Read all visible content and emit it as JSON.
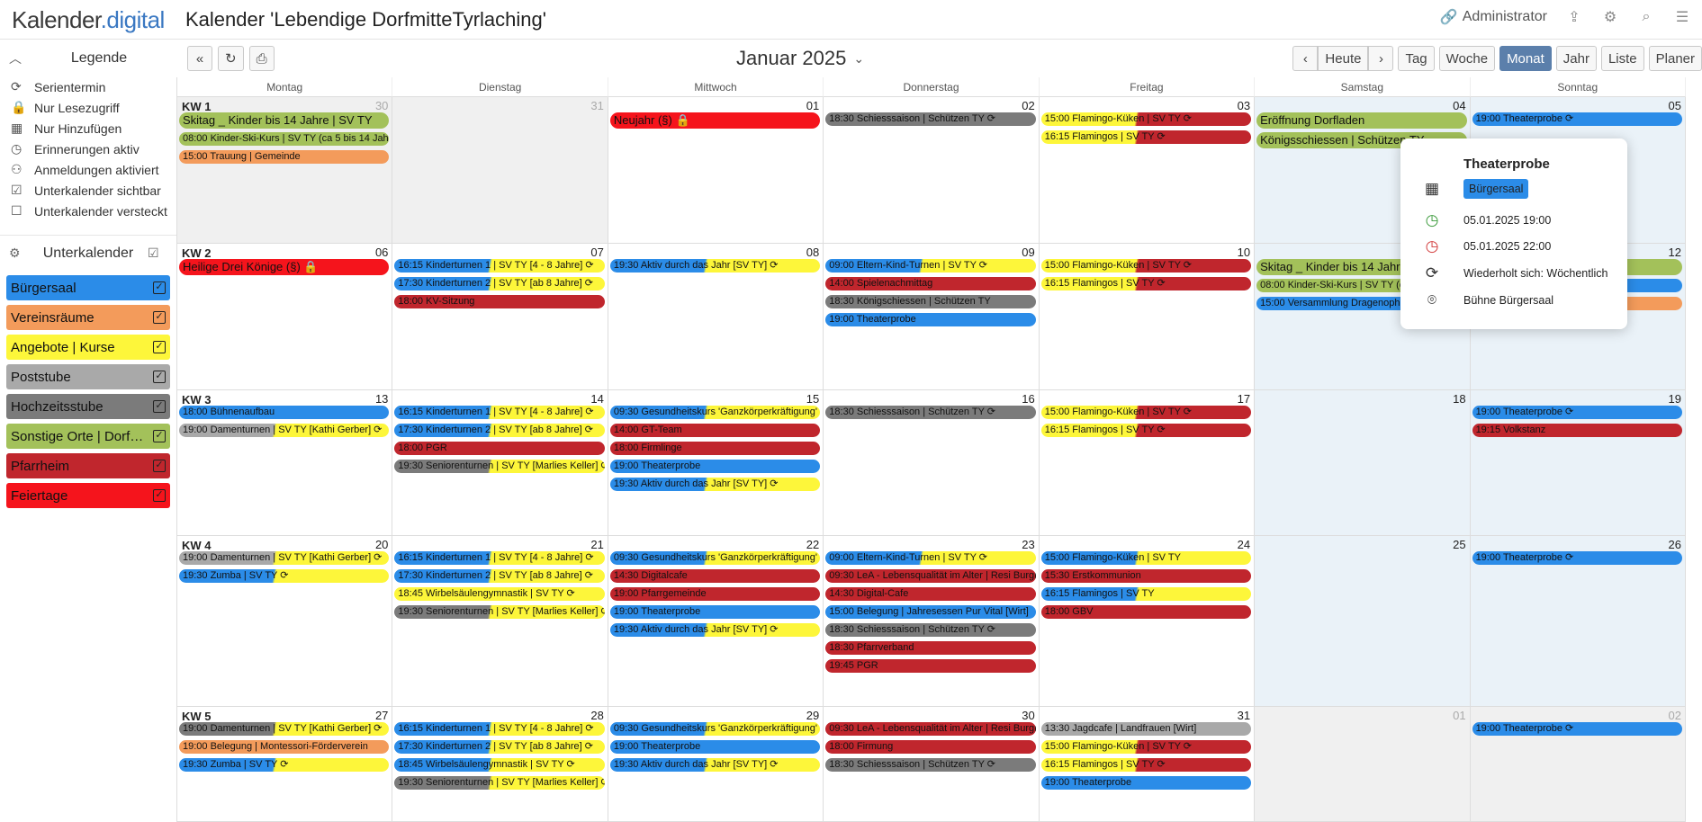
{
  "app": {
    "logo_main": "Kalender",
    "logo_suffix": ".digital",
    "calendar_title": "Kalender 'Lebendige DorfmitteTyrlaching'",
    "user": "Administrator"
  },
  "colors": {
    "blue": "#2b8ce8",
    "orange": "#f39b5b",
    "yellow": "#fdf63a",
    "grey": "#a9a9a9",
    "darkgrey": "#7b7b7b",
    "green": "#a3c15a",
    "darkred": "#c0262d",
    "red": "#f5141c"
  },
  "legend": {
    "title": "Legende",
    "items": [
      {
        "icon": "repeat-icon",
        "label": "Serientermin"
      },
      {
        "icon": "lock-icon",
        "label": "Nur Lesezugriff"
      },
      {
        "icon": "calendar-plus-icon",
        "label": "Nur Hinzufügen"
      },
      {
        "icon": "alarm-icon",
        "label": "Erinnerungen aktiv"
      },
      {
        "icon": "user-plus-icon",
        "label": "Anmeldungen aktiviert"
      },
      {
        "icon": "checkbox-checked-icon",
        "label": "Unterkalender sichtbar"
      },
      {
        "icon": "checkbox-empty-icon",
        "label": "Unterkalender versteckt"
      }
    ]
  },
  "subcalendars": {
    "title": "Unterkalender",
    "items": [
      {
        "label": "Bürgersaal",
        "color": "#2b8ce8"
      },
      {
        "label": "Vereinsräume",
        "color": "#f39b5b"
      },
      {
        "label": "Angebote | Kurse",
        "color": "#fdf63a"
      },
      {
        "label": "Poststube",
        "color": "#a9a9a9"
      },
      {
        "label": "Hochzeitsstube",
        "color": "#7b7b7b"
      },
      {
        "label": "Sonstige Orte | Dorfmitte",
        "color": "#a3c15a"
      },
      {
        "label": "Pfarrheim",
        "color": "#c0262d"
      },
      {
        "label": "Feiertage",
        "color": "#f5141c"
      }
    ]
  },
  "toolbar": {
    "month": "Januar 2025",
    "today": "Heute",
    "views": [
      "Tag",
      "Woche",
      "Monat",
      "Jahr",
      "Liste",
      "Planer"
    ],
    "active_view": "Monat"
  },
  "weekdays": [
    "Montag",
    "Dienstag",
    "Mittwoch",
    "Donnerstag",
    "Freitag",
    "Samstag",
    "Sonntag"
  ],
  "weeks": [
    {
      "kw": "KW 1",
      "days": [
        {
          "num": "30",
          "out": true,
          "events": [
            {
              "t": "Skitag _ Kinder bis 14 Jahre | SV TY",
              "c": "green",
              "big": true
            },
            {
              "t": "08:00 Kinder-Ski-Kurs | SV TY (ca 5 bis 14 Jahre)",
              "c": "green"
            },
            {
              "t": "15:00 Trauung | Gemeinde",
              "c": "orange"
            }
          ]
        },
        {
          "num": "31",
          "out": true,
          "events": []
        },
        {
          "num": "01",
          "events": [
            {
              "t": "Neujahr (§) 🔒",
              "c": "red",
              "big": true
            }
          ]
        },
        {
          "num": "02",
          "events": [
            {
              "t": "18:30 Schiesssaison | Schützen TY ⟳",
              "c": "darkgrey"
            }
          ]
        },
        {
          "num": "03",
          "events": [
            {
              "t": "15:00 Flamingo-Küken | SV TY ⟳",
              "c": "yellow",
              "c2": "darkred"
            },
            {
              "t": "16:15 Flamingos | SV TY ⟳",
              "c": "yellow",
              "c2": "darkred"
            }
          ]
        },
        {
          "num": "04",
          "we": true,
          "events": [
            {
              "t": "Eröffnung Dorfladen",
              "c": "green",
              "big": true
            },
            {
              "t": "Königsschiessen | Schützen TY",
              "c": "green",
              "big": true
            }
          ]
        },
        {
          "num": "05",
          "we": true,
          "events": [
            {
              "t": "19:00 Theaterprobe ⟳",
              "c": "blue"
            }
          ]
        }
      ]
    },
    {
      "kw": "KW 2",
      "days": [
        {
          "num": "06",
          "events": [
            {
              "t": "Heilige Drei Könige (§) 🔒",
              "c": "red",
              "big": true
            }
          ]
        },
        {
          "num": "07",
          "events": [
            {
              "t": "16:15 Kinderturnen 1 | SV TY [4 - 8 Jahre] ⟳",
              "c": "blue",
              "c2": "yellow"
            },
            {
              "t": "17:30 Kinderturnen 2 | SV TY [ab 8 Jahre] ⟳",
              "c": "blue",
              "c2": "yellow"
            },
            {
              "t": "18:00 KV-Sitzung",
              "c": "darkred"
            }
          ]
        },
        {
          "num": "08",
          "events": [
            {
              "t": "19:30 Aktiv durch das Jahr [SV TY] ⟳",
              "c": "blue",
              "c2": "yellow"
            }
          ]
        },
        {
          "num": "09",
          "events": [
            {
              "t": "09:00 Eltern-Kind-Turnen | SV TY ⟳",
              "c": "blue",
              "c2": "yellow"
            },
            {
              "t": "14:00 Spielenachmittag",
              "c": "darkred"
            },
            {
              "t": "18:30 Königschiessen | Schützen TY",
              "c": "darkgrey"
            },
            {
              "t": "19:00 Theaterprobe",
              "c": "blue"
            }
          ]
        },
        {
          "num": "10",
          "events": [
            {
              "t": "15:00 Flamingo-Küken | SV TY ⟳",
              "c": "yellow",
              "c2": "darkred"
            },
            {
              "t": "16:15 Flamingos | SV TY ⟳",
              "c": "yellow",
              "c2": "darkred"
            }
          ]
        },
        {
          "num": "11",
          "we": true,
          "events": [
            {
              "t": "Skitag _ Kinder bis 14 Jahre | SV TY",
              "c": "green",
              "big": true
            },
            {
              "t": "08:00 Kinder-Ski-Kurs | SV TY (ca 5 bis 14 Jahre)",
              "c": "green"
            },
            {
              "t": "15:00 Versammlung Dragenopharm",
              "c": "blue"
            }
          ]
        },
        {
          "num": "12",
          "we": true,
          "events": [
            {
              "t": "Skitag _ Kinder bis 14 Jahre",
              "c": "green",
              "big": true
            },
            {
              "t": "Musikschule",
              "c": "blue"
            },
            {
              "t": "",
              "c": "orange"
            }
          ]
        }
      ]
    },
    {
      "kw": "KW 3",
      "days": [
        {
          "num": "13",
          "events": [
            {
              "t": "18:00 Bühnenaufbau",
              "c": "blue"
            },
            {
              "t": "19:00 Damenturnen | SV TY [Kathi Gerber] ⟳",
              "c": "grey",
              "c2": "yellow"
            }
          ]
        },
        {
          "num": "14",
          "events": [
            {
              "t": "16:15 Kinderturnen 1 | SV TY [4 - 8 Jahre] ⟳",
              "c": "blue",
              "c2": "yellow"
            },
            {
              "t": "17:30 Kinderturnen 2 | SV TY [ab 8 Jahre] ⟳",
              "c": "blue",
              "c2": "yellow"
            },
            {
              "t": "18:00 PGR",
              "c": "darkred"
            },
            {
              "t": "19:30 Seniorenturnen | SV TY [Marlies Keller] ⟳",
              "c": "darkgrey",
              "c2": "yellow"
            }
          ]
        },
        {
          "num": "15",
          "events": [
            {
              "t": "09:30 Gesundheitskurs 'Ganzkörperkräftigung'",
              "c": "blue",
              "c2": "yellow"
            },
            {
              "t": "14:00 GT-Team",
              "c": "darkred"
            },
            {
              "t": "18:00 Firmlinge",
              "c": "darkred"
            },
            {
              "t": "19:00 Theaterprobe",
              "c": "blue"
            },
            {
              "t": "19:30 Aktiv durch das Jahr [SV TY] ⟳",
              "c": "blue",
              "c2": "yellow"
            }
          ]
        },
        {
          "num": "16",
          "events": [
            {
              "t": "18:30 Schiesssaison | Schützen TY ⟳",
              "c": "darkgrey"
            }
          ]
        },
        {
          "num": "17",
          "events": [
            {
              "t": "15:00 Flamingo-Küken | SV TY ⟳",
              "c": "yellow",
              "c2": "darkred"
            },
            {
              "t": "16:15 Flamingos | SV TY ⟳",
              "c": "yellow",
              "c2": "darkred"
            }
          ]
        },
        {
          "num": "18",
          "we": true,
          "events": []
        },
        {
          "num": "19",
          "we": true,
          "events": [
            {
              "t": "19:00 Theaterprobe ⟳",
              "c": "blue"
            },
            {
              "t": "19:15 Volkstanz",
              "c": "darkred"
            }
          ]
        }
      ]
    },
    {
      "kw": "KW 4",
      "days": [
        {
          "num": "20",
          "events": [
            {
              "t": "19:00 Damenturnen | SV TY [Kathi Gerber] ⟳",
              "c": "grey",
              "c2": "yellow"
            },
            {
              "t": "19:30 Zumba | SV TY ⟳",
              "c": "blue",
              "c2": "yellow"
            }
          ]
        },
        {
          "num": "21",
          "events": [
            {
              "t": "16:15 Kinderturnen 1 | SV TY [4 - 8 Jahre] ⟳",
              "c": "blue",
              "c2": "yellow"
            },
            {
              "t": "17:30 Kinderturnen 2 | SV TY [ab 8 Jahre] ⟳",
              "c": "blue",
              "c2": "yellow"
            },
            {
              "t": "18:45 Wirbelsäulengymnastik | SV TY ⟳",
              "c": "yellow"
            },
            {
              "t": "19:30 Seniorenturnen | SV TY [Marlies Keller] ⟳",
              "c": "darkgrey",
              "c2": "yellow"
            }
          ]
        },
        {
          "num": "22",
          "events": [
            {
              "t": "09:30 Gesundheitskurs 'Ganzkörperkräftigung'",
              "c": "blue",
              "c2": "yellow"
            },
            {
              "t": "14:30 Digitalcafe",
              "c": "darkred"
            },
            {
              "t": "19:00 Pfarrgemeinde",
              "c": "darkred"
            },
            {
              "t": "19:00 Theaterprobe",
              "c": "blue"
            },
            {
              "t": "19:30 Aktiv durch das Jahr [SV TY] ⟳",
              "c": "blue",
              "c2": "yellow"
            }
          ]
        },
        {
          "num": "23",
          "events": [
            {
              "t": "09:00 Eltern-Kind-Turnen | SV TY ⟳",
              "c": "blue",
              "c2": "yellow"
            },
            {
              "t": "09:30 LeA - Lebensqualität im Alter | Resi Burgmayer",
              "c": "darkred"
            },
            {
              "t": "14:30 Digital-Cafe",
              "c": "darkred"
            },
            {
              "t": "15:00 Belegung | Jahresessen Pur Vital [Wirt]",
              "c": "blue"
            },
            {
              "t": "18:30 Schiesssaison | Schützen TY ⟳",
              "c": "darkgrey"
            },
            {
              "t": "18:30 Pfarrverband",
              "c": "darkred"
            },
            {
              "t": "19:45 PGR",
              "c": "darkred"
            }
          ]
        },
        {
          "num": "24",
          "events": [
            {
              "t": "15:00 Flamingo-Küken | SV TY",
              "c": "blue",
              "c2": "yellow"
            },
            {
              "t": "15:30 Erstkommunion",
              "c": "darkred"
            },
            {
              "t": "16:15 Flamingos | SV TY",
              "c": "blue",
              "c2": "yellow"
            },
            {
              "t": "18:00 GBV",
              "c": "darkred"
            }
          ]
        },
        {
          "num": "25",
          "we": true,
          "events": []
        },
        {
          "num": "26",
          "we": true,
          "events": [
            {
              "t": "19:00 Theaterprobe ⟳",
              "c": "blue"
            }
          ]
        }
      ]
    },
    {
      "kw": "KW 5",
      "days": [
        {
          "num": "27",
          "events": [
            {
              "t": "19:00 Damenturnen | SV TY [Kathi Gerber] ⟳",
              "c": "darkgrey",
              "c2": "yellow"
            },
            {
              "t": "19:00 Belegung | Montessori-Förderverein",
              "c": "orange"
            },
            {
              "t": "19:30 Zumba | SV TY ⟳",
              "c": "blue",
              "c2": "yellow"
            }
          ]
        },
        {
          "num": "28",
          "events": [
            {
              "t": "16:15 Kinderturnen 1 | SV TY [4 - 8 Jahre] ⟳",
              "c": "blue",
              "c2": "yellow"
            },
            {
              "t": "17:30 Kinderturnen 2 | SV TY [ab 8 Jahre] ⟳",
              "c": "blue",
              "c2": "yellow"
            },
            {
              "t": "18:45 Wirbelsäulengymnastik | SV TY ⟳",
              "c": "blue",
              "c2": "yellow"
            },
            {
              "t": "19:30 Seniorenturnen | SV TY [Marlies Keller] ⟳",
              "c": "darkgrey",
              "c2": "yellow"
            }
          ]
        },
        {
          "num": "29",
          "events": [
            {
              "t": "09:30 Gesundheitskurs 'Ganzkörperkräftigung'",
              "c": "blue",
              "c2": "yellow"
            },
            {
              "t": "19:00 Theaterprobe",
              "c": "blue"
            },
            {
              "t": "19:30 Aktiv durch das Jahr [SV TY] ⟳",
              "c": "blue",
              "c2": "yellow"
            }
          ]
        },
        {
          "num": "30",
          "events": [
            {
              "t": "09:30 LeA - Lebensqualität im Alter | Resi Burgmayer",
              "c": "darkred"
            },
            {
              "t": "18:00 Firmung",
              "c": "darkred"
            },
            {
              "t": "18:30 Schiesssaison | Schützen TY ⟳",
              "c": "darkgrey"
            }
          ]
        },
        {
          "num": "31",
          "events": [
            {
              "t": "13:30 Jagdcafe | Landfrauen [Wirt]",
              "c": "grey"
            },
            {
              "t": "15:00 Flamingo-Küken | SV TY ⟳",
              "c": "yellow",
              "c2": "darkred"
            },
            {
              "t": "16:15 Flamingos | SV TY ⟳",
              "c": "yellow",
              "c2": "darkred"
            },
            {
              "t": "19:00 Theaterprobe",
              "c": "blue"
            }
          ]
        },
        {
          "num": "01",
          "out": true,
          "we": true,
          "events": []
        },
        {
          "num": "02",
          "out": true,
          "we": true,
          "events": [
            {
              "t": "19:00 Theaterprobe ⟳",
              "c": "blue"
            }
          ]
        }
      ]
    }
  ],
  "popup": {
    "title": "Theaterprobe",
    "subcalendar": "Bürgersaal",
    "start": "05.01.2025 19:00",
    "end": "05.01.2025 22:00",
    "repeat": "Wiederholt sich: Wöchentlich",
    "location": "Bühne Bürgersaal"
  }
}
